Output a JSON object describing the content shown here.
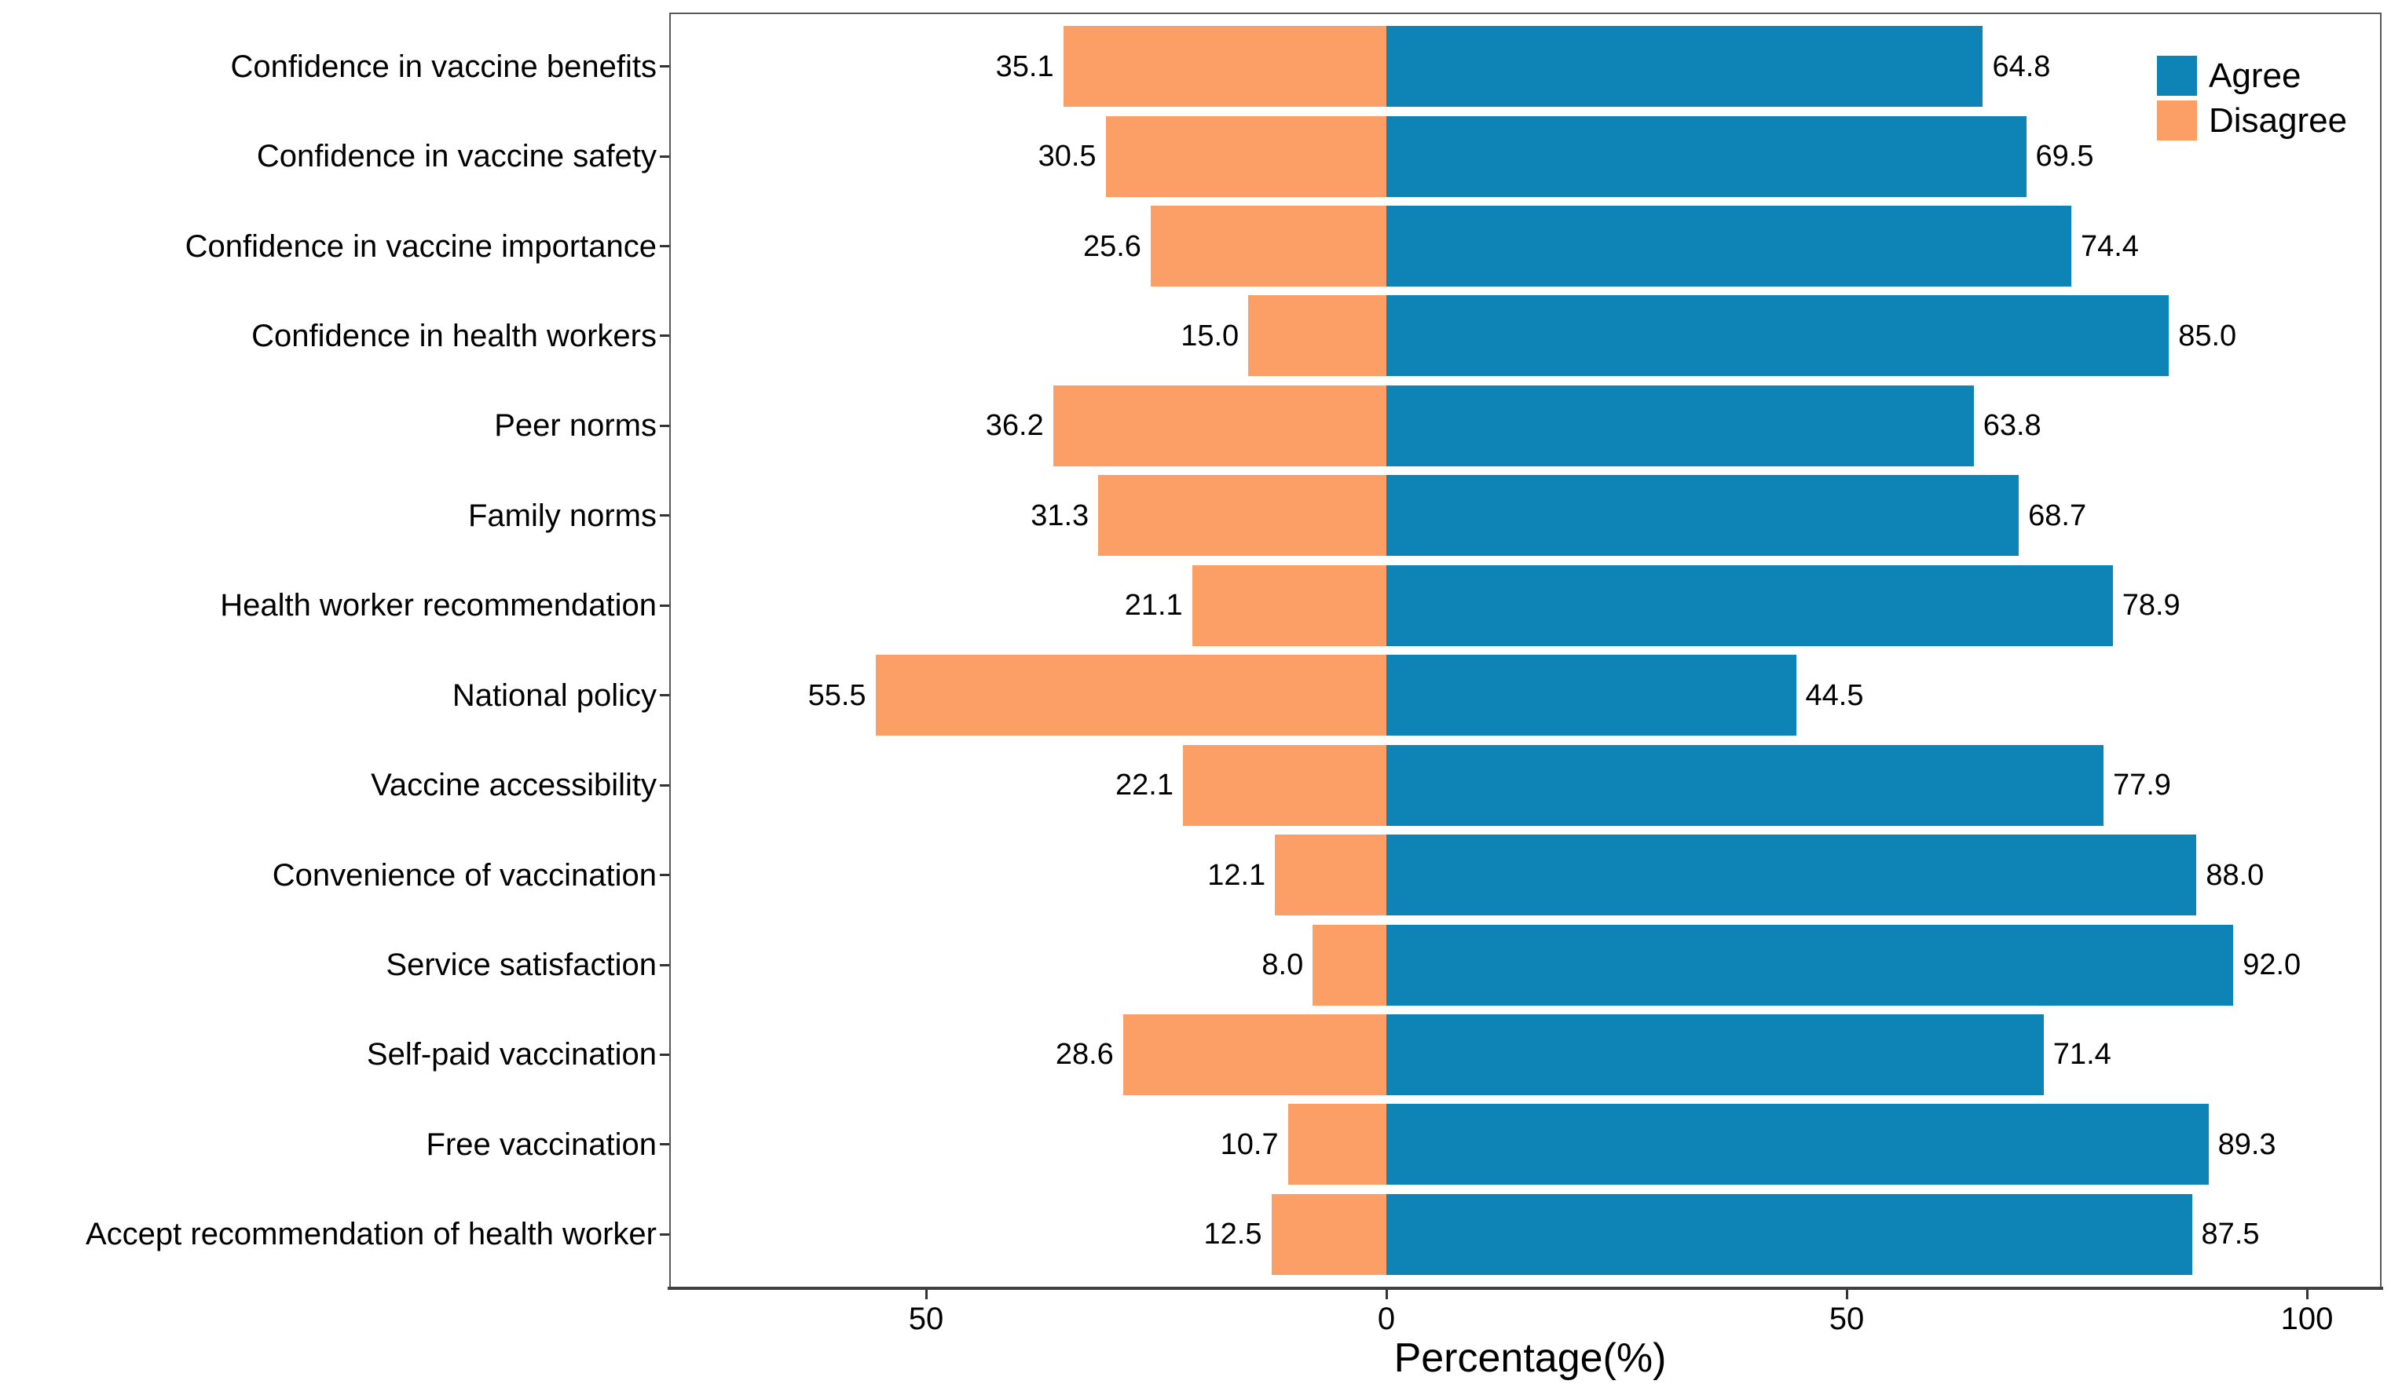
{
  "chart_data": {
    "type": "bar",
    "variant": "horizontal-diverging",
    "title": "",
    "xlabel": "Percentage(%)",
    "ylabel": "",
    "grid": false,
    "legend_position": "top-right-inside",
    "xlim": [
      -77.9,
      108.1
    ],
    "categories": [
      "Confidence in vaccine benefits",
      "Confidence in vaccine safety",
      "Confidence in vaccine importance",
      "Confidence in health workers",
      "Peer norms",
      "Family norms",
      "Health worker recommendation",
      "National policy",
      "Vaccine accessibility",
      "Convenience of vaccination",
      "Service satisfaction",
      "Self-paid vaccination",
      "Free vaccination",
      "Accept recommendation of health worker"
    ],
    "series": [
      {
        "name": "Agree",
        "color": "#0d84b5",
        "direction": "right",
        "values": [
          64.8,
          69.5,
          74.4,
          85.0,
          63.8,
          68.7,
          78.9,
          44.5,
          77.9,
          88.0,
          92.0,
          71.4,
          89.3,
          87.5
        ]
      },
      {
        "name": "Disagree",
        "color": "#fc9f66",
        "direction": "left",
        "values": [
          35.1,
          30.5,
          25.6,
          15.0,
          36.2,
          31.3,
          21.1,
          55.5,
          22.1,
          12.1,
          8.0,
          28.6,
          10.7,
          12.5
        ]
      }
    ],
    "value_labels": {
      "agree": [
        "64.8",
        "69.5",
        "74.4",
        "85.0",
        "63.8",
        "68.7",
        "78.9",
        "44.5",
        "77.9",
        "88.0",
        "92.0",
        "71.4",
        "89.3",
        "87.5"
      ],
      "disagree": [
        "35.1",
        "30.5",
        "25.6",
        "15.0",
        "36.2",
        "31.3",
        "21.1",
        "55.5",
        "22.1",
        "12.1",
        "8.0",
        "28.6",
        "10.7",
        "12.5"
      ]
    },
    "x_ticks": [
      {
        "value": -50,
        "label": "50"
      },
      {
        "value": 0,
        "label": "0"
      },
      {
        "value": 50,
        "label": "50"
      },
      {
        "value": 100,
        "label": "100"
      }
    ]
  },
  "colors": {
    "agree": "#0d84b5",
    "disagree": "#fc9f66",
    "panel_border": "#595959",
    "axis_line": "#404040",
    "tick": "#333333",
    "text": "#000000",
    "background": "#ffffff"
  }
}
